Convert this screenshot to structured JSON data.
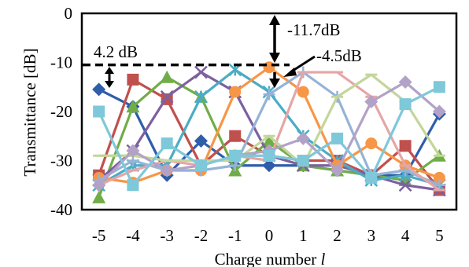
{
  "chart_data": {
    "type": "line",
    "title": "",
    "xlabel_prefix": "Charge number ",
    "xlabel_symbol": "l",
    "ylabel": "Transmittance [dB]",
    "x": [
      -5,
      -4,
      -3,
      -2,
      -1,
      0,
      1,
      2,
      3,
      4,
      5
    ],
    "x_tick_labels": [
      "-5",
      "-4",
      "-3",
      "-2",
      "-1",
      "0",
      "1",
      "2",
      "3",
      "4",
      "5"
    ],
    "ylim": [
      -40,
      0
    ],
    "y_ticks": [
      0,
      -10,
      -20,
      -30,
      -40
    ],
    "y_tick_labels": [
      "0",
      "-10",
      "-20",
      "-30",
      "-40"
    ],
    "grid": false,
    "legend": "none",
    "reference_line": {
      "y": -10.5,
      "style": "dashed"
    },
    "annotations": [
      {
        "text": "4.2 dB"
      },
      {
        "text": "-11.7dB"
      },
      {
        "text": "-4.5dB"
      }
    ],
    "series": [
      {
        "color": "#2E5DAA",
        "marker": "diamond",
        "values": [
          -15.5,
          -19,
          -33,
          -26,
          -31,
          -31,
          -31,
          -32,
          -33,
          -33,
          -20.5
        ]
      },
      {
        "color": "#C0504D",
        "marker": "square",
        "values": [
          -33,
          -13.5,
          -17.5,
          -31,
          -25,
          -29,
          -30,
          -30,
          -33,
          -27,
          -36
        ]
      },
      {
        "color": "#70AD47",
        "marker": "triangle",
        "values": [
          -37.5,
          -19,
          -13,
          -17,
          -32,
          -26,
          -31,
          -32,
          -33,
          -34,
          -29
        ]
      },
      {
        "color": "#7D60A0",
        "marker": "x",
        "values": [
          -34,
          -28,
          -17,
          -12,
          -16,
          -29,
          -31,
          -31,
          -33,
          -35,
          -36
        ]
      },
      {
        "color": "#4BACC6",
        "marker": "star",
        "values": [
          -35,
          -31,
          -31,
          -17,
          -11.5,
          -16,
          -25,
          -30,
          -34,
          -33,
          -35
        ]
      },
      {
        "color": "#F79646",
        "marker": "circle",
        "values": [
          -33.5,
          -34.5,
          -32,
          -32,
          -16,
          -11,
          -16,
          -31,
          -26.5,
          -31,
          -33.5
        ]
      },
      {
        "color": "#95B3D7",
        "marker": "plus",
        "values": [
          -34,
          -30,
          -32,
          -32,
          -31,
          -16.5,
          -12,
          -17,
          -33,
          -32,
          -35
        ]
      },
      {
        "color": "#E6A6A6",
        "marker": "dash",
        "values": [
          -35,
          -32,
          -30,
          -31,
          -29,
          -30,
          -12,
          -12,
          -17,
          -31,
          -36
        ]
      },
      {
        "color": "#C3D69B",
        "marker": "dash",
        "values": [
          -29,
          -29,
          -30,
          -30,
          -30,
          -25,
          -31,
          -17,
          -12.5,
          -18,
          -29
        ]
      },
      {
        "color": "#B3A2C7",
        "marker": "diamond",
        "values": [
          -35,
          -28,
          -32,
          -31,
          -29,
          -28,
          -25.5,
          -32,
          -18,
          -14,
          -20
        ]
      },
      {
        "color": "#7EC8DA",
        "marker": "square",
        "values": [
          -20,
          -35,
          -26.5,
          -31,
          -29,
          -29,
          -30,
          -25.5,
          -33.5,
          -18.5,
          -15
        ]
      }
    ]
  }
}
